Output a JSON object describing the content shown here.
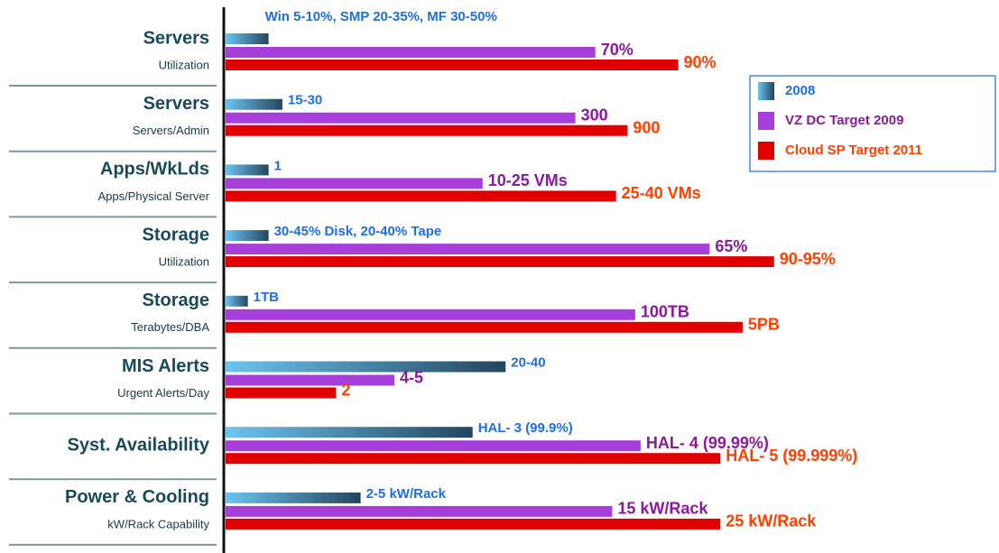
{
  "chart_data": {
    "type": "bar",
    "orientation": "horizontal",
    "categories": [
      "Servers",
      "Servers",
      "Apps/WkLds",
      "Storage",
      "Storage",
      "MIS Alerts",
      "Syst. Availability",
      "Power & Cooling"
    ],
    "subtitles": [
      "Utilization",
      "Servers/Admin",
      "Apps/Physical Server",
      "Utilization",
      "Terabytes/DBA",
      "Urgent Alerts/Day",
      null,
      "kW/Rack Capability"
    ],
    "xlim": [
      0,
      100
    ],
    "legend": "upper right",
    "series": [
      {
        "name": "2008",
        "color": "#3a8ccc",
        "label_color": "#1e6ee6",
        "values": [
          5.6,
          7.4,
          5.6,
          5.6,
          2.9,
          36.5,
          32.2,
          17.6
        ],
        "value_labels": [
          "Win 5-10%, SMP 20-35%, MF 30-50%",
          "15-30",
          "1",
          "30-45% Disk, 20-40% Tape",
          "1TB",
          "20-40",
          "HAL- 3 (99.9%)",
          "2-5 kW/Rack"
        ]
      },
      {
        "name": "VZ DC Target 2009",
        "color": "#a63fd9",
        "label_color": "#8a1a9a",
        "values": [
          48.2,
          45.6,
          33.5,
          63.1,
          53.4,
          22,
          54.1,
          50.4
        ],
        "value_labels": [
          "70%",
          "300",
          "10-25 VMs",
          "65%",
          "100TB",
          "4-5",
          "HAL- 4 (99.99%)",
          "15 kW/Rack"
        ]
      },
      {
        "name": "Cloud SP Target 2011",
        "color": "#e00000",
        "label_color": "#ff4000",
        "values": [
          59,
          52.4,
          50.9,
          71.5,
          67.4,
          14.4,
          64.5,
          64.5
        ],
        "value_labels": [
          "90%",
          "900",
          "25-40 VMs",
          "90-95%",
          "5PB",
          "2",
          "HAL- 5 (99.999%)",
          "25 kW/Rack"
        ]
      }
    ]
  }
}
